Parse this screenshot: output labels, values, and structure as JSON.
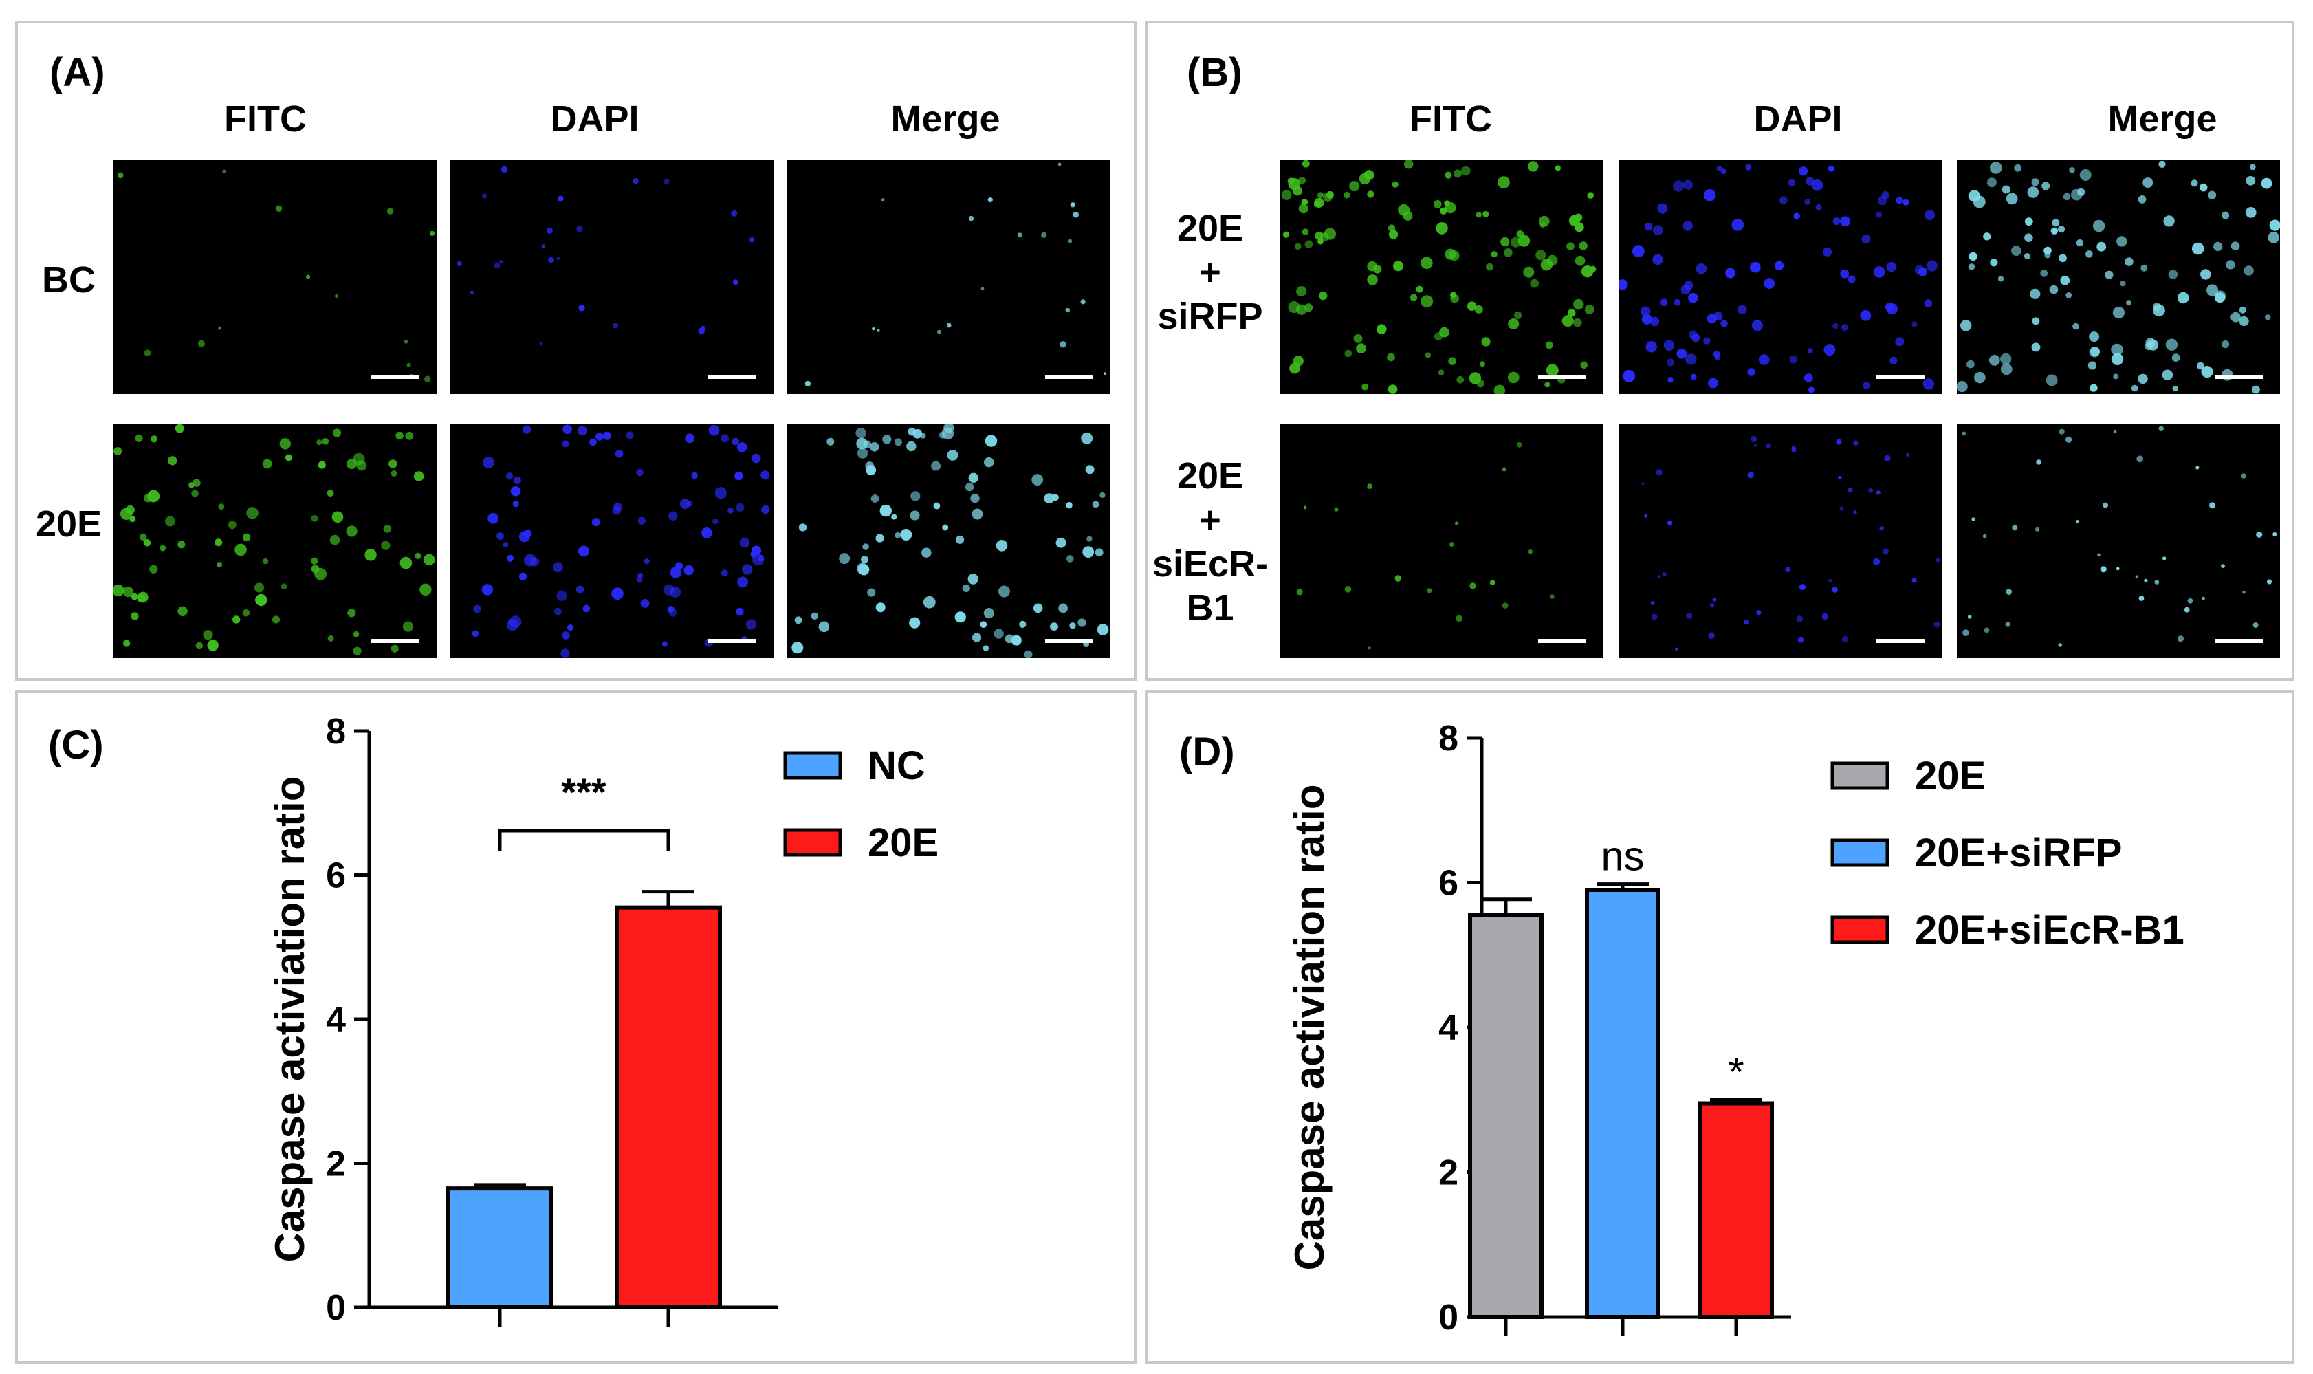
{
  "panels": {
    "A": {
      "label": "(A)",
      "columns": [
        "FITC",
        "DAPI",
        "Merge"
      ],
      "rows": [
        {
          "label_lines": [
            "BC"
          ]
        },
        {
          "label_lines": [
            "20E"
          ]
        }
      ]
    },
    "B": {
      "label": "(B)",
      "columns": [
        "FITC",
        "DAPI",
        "Merge"
      ],
      "rows": [
        {
          "label_lines": [
            "20E",
            "+",
            "siRFP"
          ]
        },
        {
          "label_lines": [
            "20E",
            "+",
            "siEcR-",
            "B1"
          ]
        }
      ]
    },
    "C": {
      "label": "(C)"
    },
    "D": {
      "label": "(D)"
    }
  },
  "colors": {
    "fitc": "#3fbf1f",
    "dapi": "#2a2aff",
    "merge": "#7fd9e8",
    "nc_bar": "#4da3ff",
    "treat_bar": "#ff1a1a",
    "gray_bar": "#a9a9ad",
    "panel_border": "#c8c8c8"
  },
  "chart_data": [
    {
      "id": "C",
      "type": "bar",
      "categories": [
        "NC",
        "20E"
      ],
      "values": [
        1.65,
        5.55
      ],
      "errors": [
        0.05,
        0.22
      ],
      "ylabel": "Caspase activiation ratio",
      "ylim": [
        0,
        8
      ],
      "yticks": [
        0,
        2,
        4,
        6,
        8
      ],
      "legend": [
        "NC",
        "20E"
      ],
      "significance": [
        {
          "between": [
            0,
            1
          ],
          "label": "***"
        }
      ]
    },
    {
      "id": "D",
      "type": "bar",
      "categories": [
        "20E",
        "20E+siRFP",
        "20E+siEcR-B1"
      ],
      "values": [
        5.55,
        5.9,
        2.95
      ],
      "errors": [
        0.22,
        0.08,
        0.05
      ],
      "ylabel": "Caspase activiation ratio",
      "ylim": [
        0,
        8
      ],
      "yticks": [
        0,
        2,
        4,
        6,
        8
      ],
      "legend": [
        "20E",
        "20E+siRFP",
        "20E+siEcR-B1"
      ],
      "annotations": [
        {
          "bar": 1,
          "label": "ns"
        },
        {
          "bar": 2,
          "label": "*"
        }
      ]
    }
  ]
}
